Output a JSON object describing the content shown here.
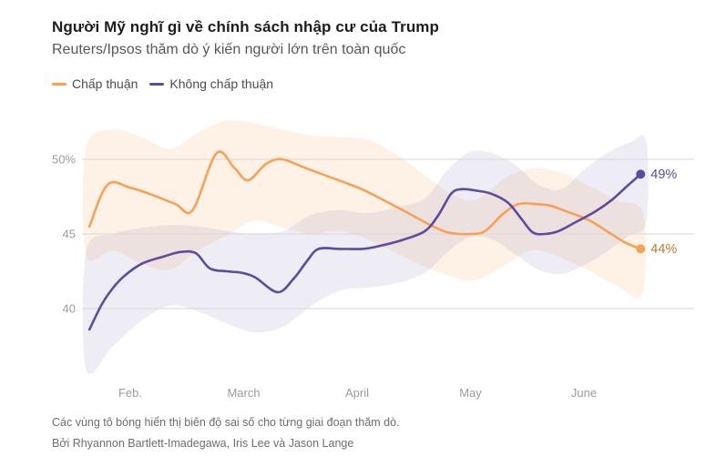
{
  "header": {
    "title": "Người Mỹ nghĩ gì về chính sách nhập cư của Trump",
    "subtitle": "Reuters/Ipsos thăm dò ý kiến người lớn trên toàn quốc"
  },
  "footer": {
    "note": "Các vùng tô bóng hiển thị biên độ sai số cho từng giai đoạn thăm dò.",
    "byline": "Bởi Rhyannon Bartlett-Imadegawa, Iris Lee và Jason Lange"
  },
  "chart_data": {
    "type": "line",
    "title": "Người Mỹ nghĩ gì về chính sách nhập cư của Trump",
    "subtitle": "Reuters/Ipsos thăm dò ý kiến người lớn trên toàn quốc",
    "grid": true,
    "legend_position": "top-left",
    "x_axis": {
      "unit": "month",
      "range": [
        1.55,
        6.7
      ],
      "ticks": [
        {
          "label": "Feb.",
          "value": 2
        },
        {
          "label": "March",
          "value": 3
        },
        {
          "label": "April",
          "value": 4
        },
        {
          "label": "May",
          "value": 5
        },
        {
          "label": "June",
          "value": 6
        }
      ]
    },
    "y_axis": {
      "unit": "percent",
      "range": [
        35,
        53
      ],
      "ticks": [
        {
          "label": "50%",
          "value": 50
        },
        {
          "label": "45",
          "value": 45
        },
        {
          "label": "40",
          "value": 40
        }
      ]
    },
    "series": [
      {
        "name": "Chấp thuận",
        "color": "#F7A057",
        "end_label": "44%",
        "end_label_color": "#C07A35",
        "end_value": 44,
        "band_opacity": 0.14,
        "points": [
          [
            1.64,
            45.5
          ],
          [
            1.8,
            48.3
          ],
          [
            2.0,
            48.1
          ],
          [
            2.2,
            47.6
          ],
          [
            2.4,
            47.0
          ],
          [
            2.55,
            46.6
          ],
          [
            2.76,
            50.4
          ],
          [
            2.92,
            49.4
          ],
          [
            3.04,
            48.6
          ],
          [
            3.2,
            49.7
          ],
          [
            3.34,
            50.0
          ],
          [
            3.55,
            49.4
          ],
          [
            3.8,
            48.7
          ],
          [
            4.04,
            48.0
          ],
          [
            4.25,
            47.2
          ],
          [
            4.45,
            46.4
          ],
          [
            4.62,
            45.7
          ],
          [
            4.8,
            45.1
          ],
          [
            5.0,
            45.0
          ],
          [
            5.13,
            45.2
          ],
          [
            5.28,
            46.3
          ],
          [
            5.42,
            47.0
          ],
          [
            5.58,
            47.0
          ],
          [
            5.7,
            46.9
          ],
          [
            5.85,
            46.5
          ],
          [
            6.05,
            45.9
          ],
          [
            6.22,
            45.1
          ],
          [
            6.37,
            44.4
          ],
          [
            6.5,
            44.0
          ]
        ],
        "band": [
          [
            1.61,
            50.8,
            43.6
          ],
          [
            1.85,
            52.0,
            43.9
          ],
          [
            2.1,
            51.5,
            43.0
          ],
          [
            2.35,
            50.7,
            42.6
          ],
          [
            2.6,
            51.8,
            43.9
          ],
          [
            2.85,
            52.6,
            44.9
          ],
          [
            3.1,
            52.4,
            45.9
          ],
          [
            3.35,
            52.0,
            45.4
          ],
          [
            3.6,
            51.6,
            45.0
          ],
          [
            3.85,
            51.5,
            45.2
          ],
          [
            4.1,
            51.3,
            44.6
          ],
          [
            4.35,
            50.3,
            43.7
          ],
          [
            4.6,
            48.9,
            42.8
          ],
          [
            4.85,
            47.6,
            42.1
          ],
          [
            5.05,
            47.3,
            41.9
          ],
          [
            5.3,
            48.7,
            42.9
          ],
          [
            5.55,
            49.4,
            43.9
          ],
          [
            5.8,
            49.1,
            43.4
          ],
          [
            6.05,
            48.2,
            42.5
          ],
          [
            6.3,
            47.2,
            41.5
          ],
          [
            6.52,
            46.4,
            41.0
          ]
        ]
      },
      {
        "name": "Không chấp thuận",
        "color": "#5C4B9E",
        "end_label": "49%",
        "end_label_color": "#5C4B9E",
        "end_value": 49,
        "band_opacity": 0.1,
        "points": [
          [
            1.64,
            38.6
          ],
          [
            1.75,
            40.3
          ],
          [
            1.85,
            41.4
          ],
          [
            1.95,
            42.2
          ],
          [
            2.1,
            43.0
          ],
          [
            2.3,
            43.5
          ],
          [
            2.45,
            43.8
          ],
          [
            2.58,
            43.7
          ],
          [
            2.7,
            42.7
          ],
          [
            2.85,
            42.5
          ],
          [
            2.98,
            42.4
          ],
          [
            3.1,
            42.1
          ],
          [
            3.3,
            41.1
          ],
          [
            3.44,
            42.0
          ],
          [
            3.56,
            43.2
          ],
          [
            3.66,
            44.0
          ],
          [
            3.85,
            44.0
          ],
          [
            4.05,
            44.0
          ],
          [
            4.2,
            44.2
          ],
          [
            4.4,
            44.6
          ],
          [
            4.6,
            45.2
          ],
          [
            4.72,
            46.3
          ],
          [
            4.83,
            47.7
          ],
          [
            4.92,
            48.0
          ],
          [
            5.05,
            47.9
          ],
          [
            5.18,
            47.7
          ],
          [
            5.33,
            47.1
          ],
          [
            5.45,
            46.0
          ],
          [
            5.55,
            45.1
          ],
          [
            5.66,
            45.0
          ],
          [
            5.78,
            45.2
          ],
          [
            5.93,
            45.8
          ],
          [
            6.1,
            46.5
          ],
          [
            6.25,
            47.3
          ],
          [
            6.38,
            48.2
          ],
          [
            6.5,
            49.0
          ]
        ],
        "band": [
          [
            1.61,
            43.8,
            35.9
          ],
          [
            1.85,
            45.0,
            37.5
          ],
          [
            2.1,
            45.4,
            39.2
          ],
          [
            2.35,
            45.6,
            40.2
          ],
          [
            2.6,
            45.5,
            39.8
          ],
          [
            2.85,
            45.2,
            39.0
          ],
          [
            3.1,
            45.0,
            38.4
          ],
          [
            3.35,
            45.2,
            38.8
          ],
          [
            3.6,
            46.3,
            40.2
          ],
          [
            3.85,
            46.6,
            41.2
          ],
          [
            4.1,
            46.4,
            41.4
          ],
          [
            4.35,
            46.8,
            41.7
          ],
          [
            4.6,
            47.4,
            42.4
          ],
          [
            4.8,
            49.3,
            43.8
          ],
          [
            5.0,
            50.5,
            44.8
          ],
          [
            5.2,
            50.4,
            44.6
          ],
          [
            5.4,
            49.6,
            43.6
          ],
          [
            5.6,
            48.3,
            42.6
          ],
          [
            5.8,
            48.0,
            42.3
          ],
          [
            6.0,
            49.3,
            42.9
          ],
          [
            6.2,
            50.4,
            43.8
          ],
          [
            6.4,
            51.1,
            44.9
          ],
          [
            6.55,
            51.2,
            45.8
          ]
        ]
      }
    ],
    "colors": {
      "approve": "#F7A057",
      "disapprove": "#5C4B9E",
      "gridline": "#D6D6D6",
      "axis_text": "#9B9B9B"
    }
  }
}
